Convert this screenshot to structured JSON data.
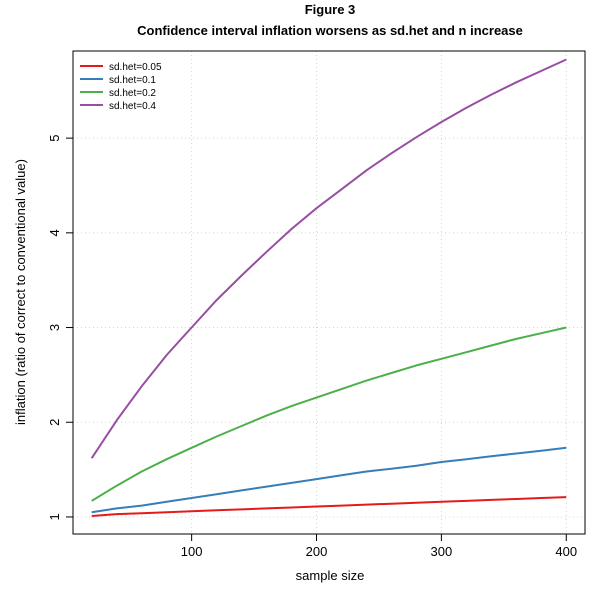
{
  "chart_data": {
    "type": "line",
    "title": "Figure 3",
    "subtitle": "Confidence interval inflation worsens as sd.het and n increase",
    "xlabel": "sample size",
    "ylabel": "inflation (ratio of correct to conventional value)",
    "xlim": [
      5,
      415
    ],
    "ylim": [
      0.82,
      5.92
    ],
    "xticks": [
      100,
      200,
      300,
      400
    ],
    "yticks": [
      1,
      2,
      3,
      4,
      5
    ],
    "grid": true,
    "legend_position": "top-left",
    "x": [
      20,
      40,
      60,
      80,
      100,
      120,
      140,
      160,
      180,
      200,
      220,
      240,
      260,
      280,
      300,
      320,
      340,
      360,
      380,
      400
    ],
    "series": [
      {
        "name": "sd.het=0.05",
        "color": "#e41a1c",
        "values": [
          1.01,
          1.03,
          1.04,
          1.05,
          1.06,
          1.07,
          1.08,
          1.09,
          1.1,
          1.11,
          1.12,
          1.13,
          1.14,
          1.15,
          1.16,
          1.17,
          1.18,
          1.19,
          1.2,
          1.21
        ]
      },
      {
        "name": "sd.het=0.1",
        "color": "#377eb8",
        "values": [
          1.05,
          1.09,
          1.12,
          1.16,
          1.2,
          1.24,
          1.28,
          1.32,
          1.36,
          1.4,
          1.44,
          1.48,
          1.51,
          1.54,
          1.58,
          1.61,
          1.64,
          1.67,
          1.7,
          1.73
        ]
      },
      {
        "name": "sd.het=0.2",
        "color": "#4daf4a",
        "values": [
          1.17,
          1.33,
          1.48,
          1.61,
          1.73,
          1.85,
          1.96,
          2.07,
          2.17,
          2.26,
          2.35,
          2.44,
          2.52,
          2.6,
          2.67,
          2.74,
          2.81,
          2.88,
          2.94,
          3.0
        ]
      },
      {
        "name": "sd.het=0.4",
        "color": "#984ea3",
        "values": [
          1.62,
          2.02,
          2.38,
          2.71,
          3.0,
          3.29,
          3.55,
          3.8,
          4.04,
          4.26,
          4.46,
          4.66,
          4.84,
          5.01,
          5.17,
          5.32,
          5.46,
          5.59,
          5.71,
          5.83
        ]
      }
    ]
  }
}
